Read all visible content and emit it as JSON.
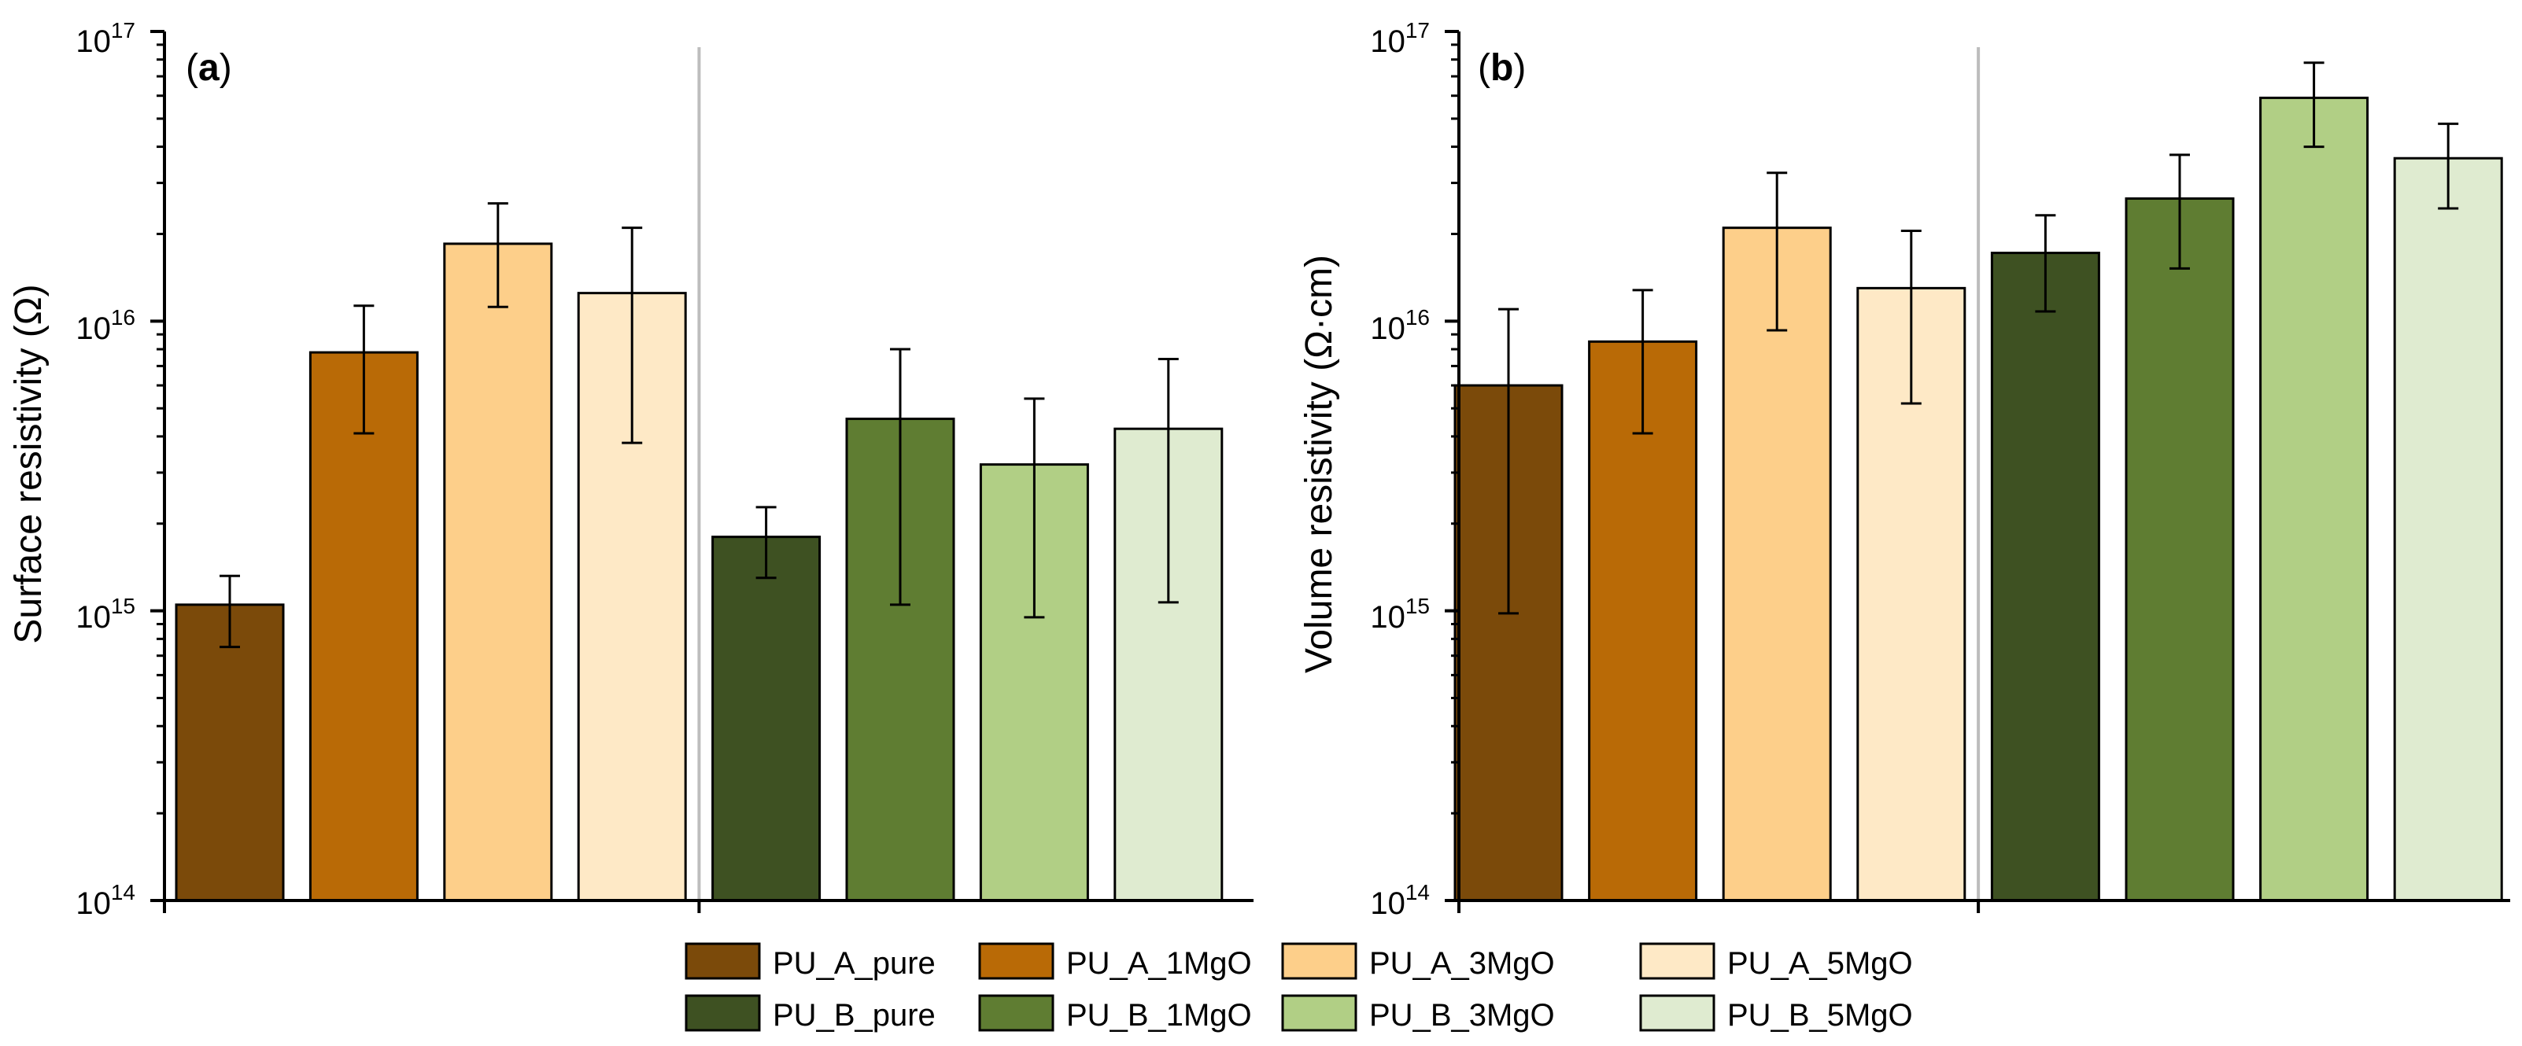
{
  "chart_data": [
    {
      "type": "bar",
      "panel_label_open": "(",
      "panel_label_letter": "a",
      "panel_label_close": ")",
      "ylabel": "Surface resistivity (Ω)",
      "xlabel": "",
      "yscale": "log",
      "ylim": [
        100000000000000.0,
        1e+17
      ],
      "y_ticks": [
        {
          "base": "10",
          "exp": "14",
          "value": 100000000000000.0
        },
        {
          "base": "10",
          "exp": "15",
          "value": 1000000000000000.0
        },
        {
          "base": "10",
          "exp": "16",
          "value": 1e+16
        },
        {
          "base": "10",
          "exp": "17",
          "value": 1e+17
        }
      ],
      "categories": [
        "PU_A_pure",
        "PU_A_1MgO",
        "PU_A_3MgO",
        "PU_A_5MgO",
        "PU_B_pure",
        "PU_B_1MgO",
        "PU_B_3MgO",
        "PU_B_5MgO"
      ],
      "values": [
        1050000000000000.0,
        7800000000000000.0,
        1.85e+16,
        1.25e+16,
        1800000000000000.0,
        4600000000000000.0,
        3200000000000000.0,
        4250000000000000.0
      ],
      "error_low": [
        750000000000000.0,
        4100000000000000.0,
        1.12e+16,
        3800000000000000.0,
        1300000000000000.0,
        1050000000000000.0,
        950000000000000.0,
        1070000000000000.0
      ],
      "error_high": [
        1320000000000000.0,
        1.13e+16,
        2.55e+16,
        2.1e+16,
        2280000000000000.0,
        8000000000000000.0,
        5400000000000000.0,
        7400000000000000.0
      ],
      "group_divider_after_index": 3
    },
    {
      "type": "bar",
      "panel_label_open": "(",
      "panel_label_letter": "b",
      "panel_label_close": ")",
      "ylabel": "Volume resistivity (Ω·cm)",
      "xlabel": "",
      "yscale": "log",
      "ylim": [
        100000000000000.0,
        1e+17
      ],
      "y_ticks": [
        {
          "base": "10",
          "exp": "14",
          "value": 100000000000000.0
        },
        {
          "base": "10",
          "exp": "15",
          "value": 1000000000000000.0
        },
        {
          "base": "10",
          "exp": "16",
          "value": 1e+16
        },
        {
          "base": "10",
          "exp": "17",
          "value": 1e+17
        }
      ],
      "categories": [
        "PU_A_pure",
        "PU_A_1MgO",
        "PU_A_3MgO",
        "PU_A_5MgO",
        "PU_B_pure",
        "PU_B_1MgO",
        "PU_B_3MgO",
        "PU_B_5MgO"
      ],
      "values": [
        6000000000000000.0,
        8500000000000000.0,
        2.1e+16,
        1.3e+16,
        1.72e+16,
        2.65e+16,
        5.9e+16,
        3.65e+16
      ],
      "error_low": [
        980000000000000.0,
        4100000000000000.0,
        9300000000000000.0,
        5200000000000000.0,
        1.08e+16,
        1.52e+16,
        4e+16,
        2.45e+16
      ],
      "error_high": [
        1.1e+16,
        1.28e+16,
        3.25e+16,
        2.05e+16,
        2.32e+16,
        3.75e+16,
        7.8e+16,
        4.8e+16
      ],
      "group_divider_after_index": 3
    }
  ],
  "legend": {
    "position": "bottom-center",
    "items": [
      {
        "label": "PU_A_pure",
        "color": "#7B4A0A"
      },
      {
        "label": "PU_A_1MgO",
        "color": "#B96A06"
      },
      {
        "label": "PU_A_3MgO",
        "color": "#FDCF8A"
      },
      {
        "label": "PU_A_5MgO",
        "color": "#FEE9C6"
      },
      {
        "label": "PU_B_pure",
        "color": "#3E5122"
      },
      {
        "label": "PU_B_1MgO",
        "color": "#5F7D32"
      },
      {
        "label": "PU_B_3MgO",
        "color": "#B1CF85"
      },
      {
        "label": "PU_B_5MgO",
        "color": "#DFEBD0"
      }
    ]
  },
  "colors": {
    "bar_colors": [
      "#7B4A0A",
      "#B96A06",
      "#FDCF8A",
      "#FEE9C6",
      "#3E5122",
      "#5F7D32",
      "#B1CF85",
      "#DFEBD0"
    ],
    "divider": "#BDBDBD",
    "axis": "#000000"
  }
}
